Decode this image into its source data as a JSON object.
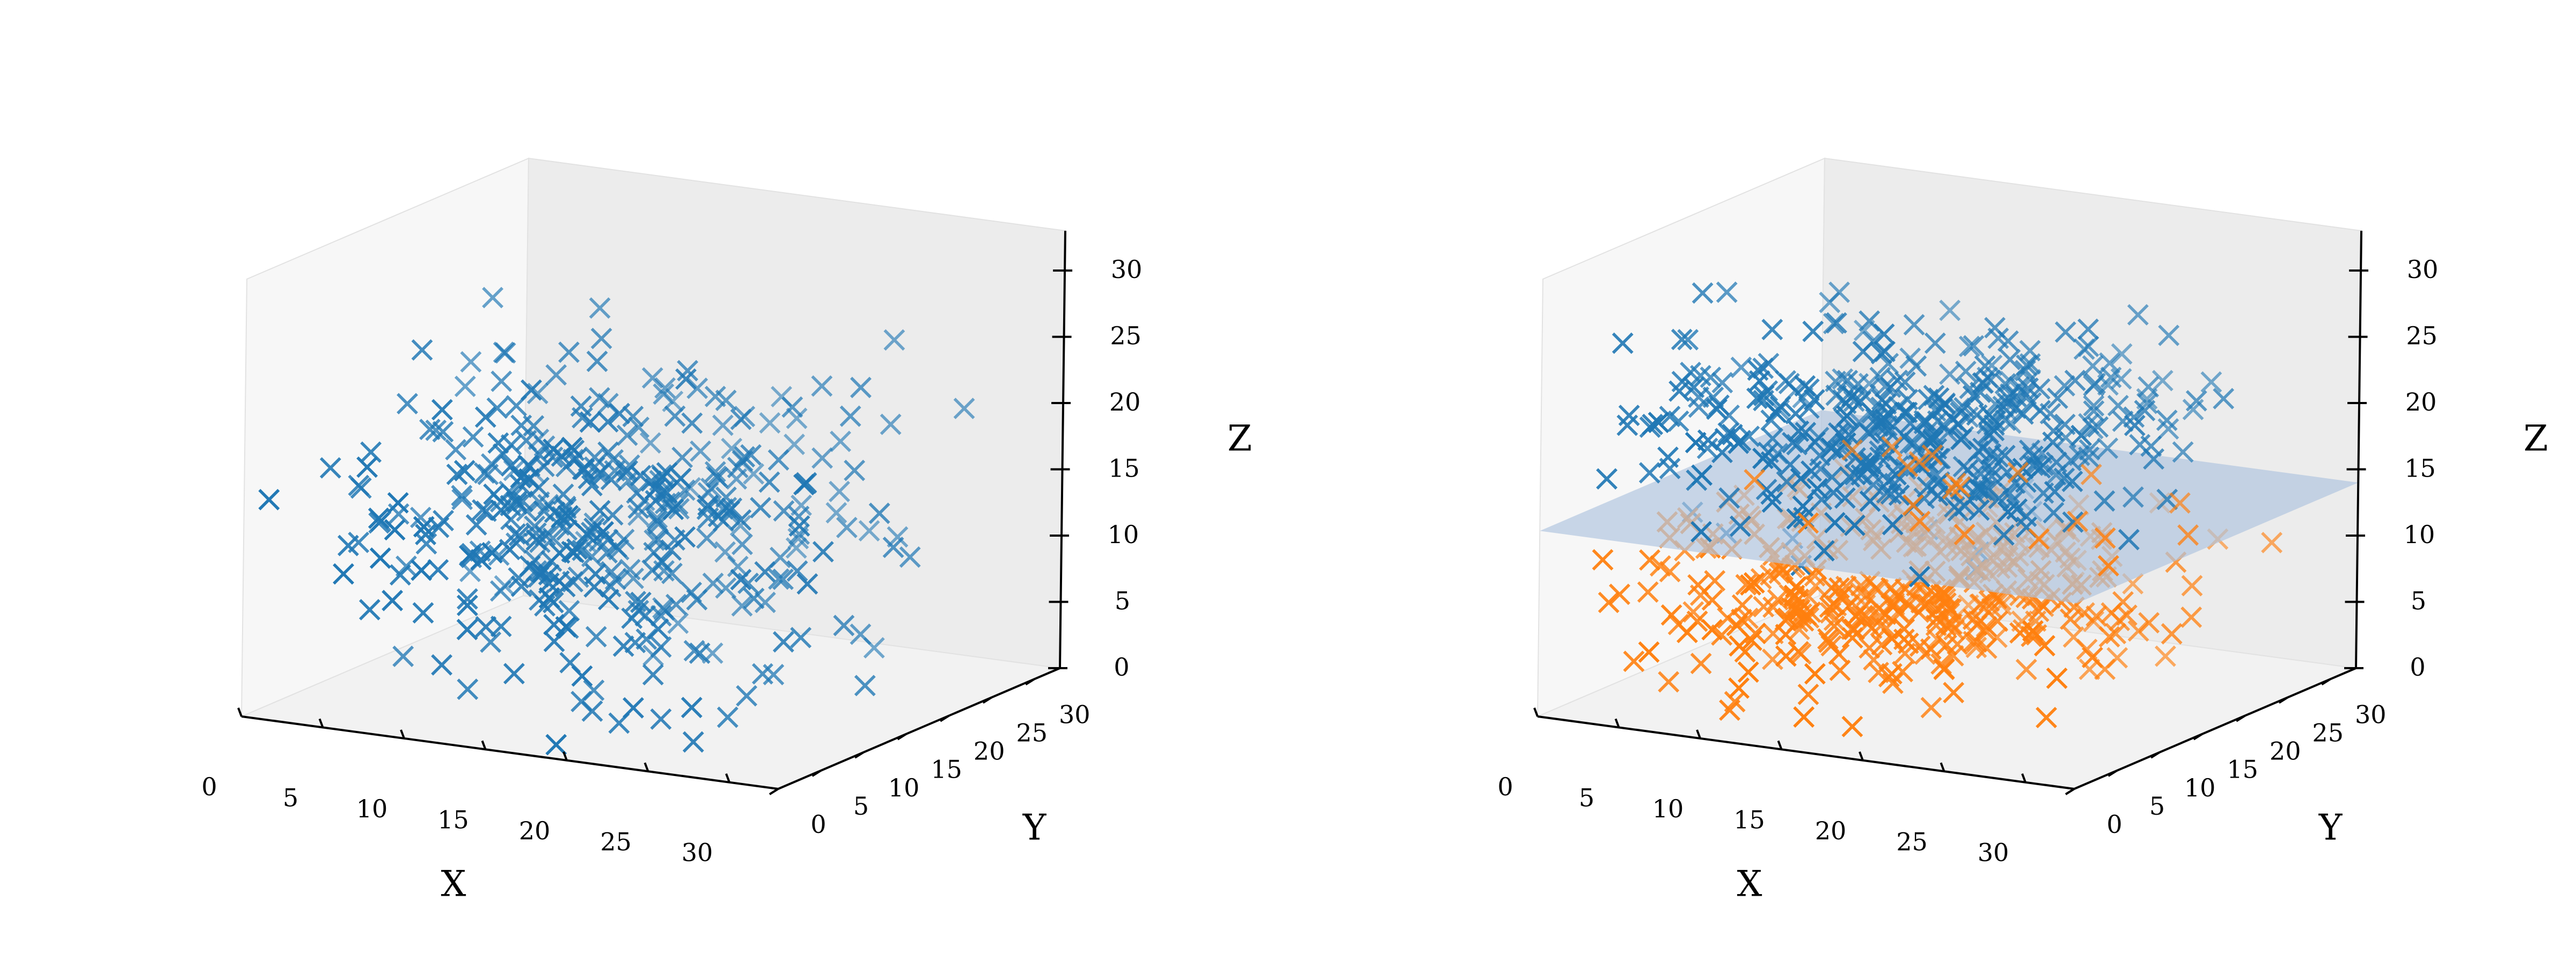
{
  "chart_data": [
    {
      "type": "scatter3d",
      "xlabel": "X",
      "ylabel": "Y",
      "zlabel": "Z",
      "xticks": [
        0,
        5,
        10,
        15,
        20,
        25,
        30
      ],
      "yticks": [
        0,
        5,
        10,
        15,
        20,
        25,
        30
      ],
      "zticks": [
        0,
        5,
        10,
        15,
        20,
        25,
        30
      ],
      "xlim": [
        0,
        33
      ],
      "ylim": [
        0,
        33
      ],
      "zlim": [
        0,
        33
      ],
      "marker": "x",
      "grid": false,
      "series": [
        {
          "color": "#1f77b4",
          "count": 400,
          "center": [
            15,
            15,
            13
          ],
          "std": [
            7,
            7,
            6
          ],
          "range_min": [
            1,
            1,
            0
          ],
          "range_max": [
            31,
            31,
            31
          ]
        }
      ],
      "plane": null
    },
    {
      "type": "scatter3d",
      "xlabel": "X",
      "ylabel": "Y",
      "zlabel": "Z",
      "xticks": [
        0,
        5,
        10,
        15,
        20,
        25,
        30
      ],
      "yticks": [
        0,
        5,
        10,
        15,
        20,
        25,
        30
      ],
      "zticks": [
        0,
        5,
        10,
        15,
        20,
        25,
        30
      ],
      "xlim": [
        0,
        33
      ],
      "ylim": [
        0,
        33
      ],
      "zlim": [
        0,
        33
      ],
      "marker": "x",
      "grid": false,
      "series": [
        {
          "color": "#1f77b4",
          "count": 400,
          "center": [
            15,
            15,
            20
          ],
          "std": [
            7,
            7,
            3.5
          ],
          "range_min": [
            1,
            1,
            12
          ],
          "range_max": [
            31,
            31,
            31
          ]
        },
        {
          "color": "#ff7f0e",
          "count": 400,
          "center": [
            15,
            15,
            8
          ],
          "std": [
            7,
            7,
            3.5
          ],
          "range_min": [
            1,
            1,
            0
          ],
          "range_max": [
            31,
            31,
            16
          ]
        }
      ],
      "plane": {
        "z": 14,
        "color": "#b0c4de"
      }
    }
  ]
}
